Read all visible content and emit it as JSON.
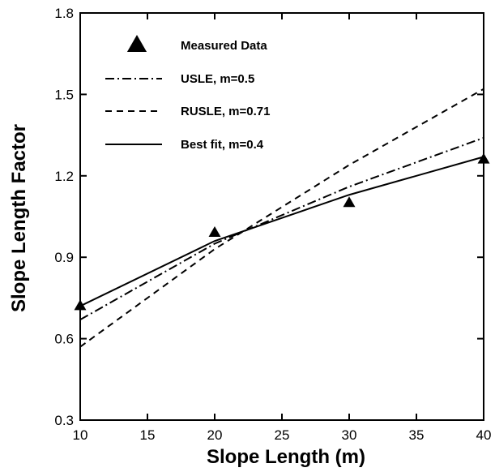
{
  "chart_data": {
    "type": "line",
    "xlabel": "Slope Length  (m)",
    "ylabel": "Slope Length Factor",
    "xlim": [
      10,
      40
    ],
    "ylim": [
      0.3,
      1.8
    ],
    "xticks": [
      10,
      15,
      20,
      25,
      30,
      35,
      40
    ],
    "yticks": [
      0.3,
      0.6,
      0.9,
      1.2,
      1.5,
      1.8
    ],
    "xtick_labels": [
      "10",
      "15",
      "20",
      "25",
      "30",
      "35",
      "40"
    ],
    "ytick_labels": [
      "0.3",
      "0.6",
      "0.9",
      "1.2",
      "1.5",
      "1.8"
    ],
    "grid": false,
    "legend_position": "top-left",
    "series": [
      {
        "name": "Measured Data",
        "kind": "scatter",
        "marker": "triangle",
        "x": [
          10,
          20,
          30,
          40
        ],
        "y": [
          0.72,
          0.99,
          1.1,
          1.26
        ]
      },
      {
        "name": "USLE, m=0.5",
        "kind": "line",
        "dash": "dashdot",
        "x": [
          10,
          20,
          30,
          40
        ],
        "y": [
          0.67,
          0.95,
          1.16,
          1.34
        ]
      },
      {
        "name": "RUSLE, m=0.71",
        "kind": "line",
        "dash": "dashed",
        "x": [
          10,
          20,
          30,
          40
        ],
        "y": [
          0.57,
          0.93,
          1.24,
          1.52
        ]
      },
      {
        "name": "Best fit, m=0.4",
        "kind": "line",
        "dash": "solid",
        "x": [
          10,
          20,
          30,
          40
        ],
        "y": [
          0.72,
          0.96,
          1.13,
          1.27
        ]
      }
    ]
  }
}
